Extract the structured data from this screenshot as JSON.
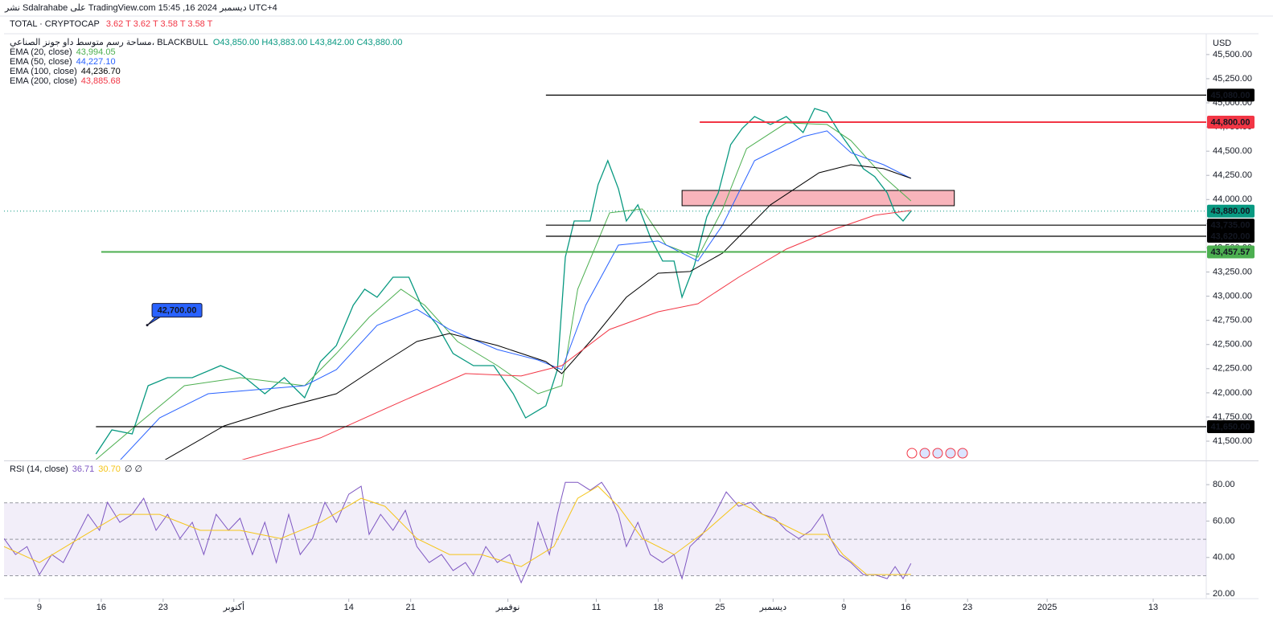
{
  "header": {
    "published": "نشر Sdalrahabe على TradingView.com 15:45 ,16 ديسمبر 2024 UTC+4",
    "symbol": "TOTAL · CRYPTOCAP",
    "symbol_values": "3.62 T  3.62 T  3.58 T  3.58 T",
    "overlay": "مساحة رسم متوسط داو جونز الصناعي، BLACKBULL",
    "ohlc": "O43,850.00  H43,883.00  L43,842.00  C43,880.00",
    "currency": "USD"
  },
  "chart_data": [
    {
      "type": "line",
      "xlim": [
        -4,
        132
      ],
      "ylim": [
        41309,
        45690
      ],
      "yticks": [
        {
          "value": 41500,
          "label": "41,500.00"
        },
        {
          "value": 41750,
          "label": "41,750.00"
        },
        {
          "value": 42000,
          "label": "42,000.00"
        },
        {
          "value": 42250,
          "label": "42,250.00"
        },
        {
          "value": 42500,
          "label": "42,500.00"
        },
        {
          "value": 42750,
          "label": "42,750.00"
        },
        {
          "value": 43000,
          "label": "43,000.00"
        },
        {
          "value": 43250,
          "label": "43,250.00"
        },
        {
          "value": 43500,
          "label": "43,500.00"
        },
        {
          "value": 43750,
          "label": "43,750.00"
        },
        {
          "value": 44000,
          "label": "44,000.00"
        },
        {
          "value": 44250,
          "label": "44,250.00"
        },
        {
          "value": 44500,
          "label": "44,500.00"
        },
        {
          "value": 44750,
          "label": "44,750.00"
        },
        {
          "value": 45000,
          "label": "45,000.00"
        },
        {
          "value": 45250,
          "label": "45,250.00"
        },
        {
          "value": 45500,
          "label": "45,500.00"
        }
      ],
      "series": [
        {
          "color": "#089981",
          "last_value_label": "43,880.00",
          "x": [
            6.4,
            8.2,
            10.5,
            12.3,
            14.5,
            17.3,
            20.5,
            22.7,
            25.5,
            27.7,
            30,
            31.8,
            33.6,
            35.5,
            36.8,
            38.2,
            40,
            41.8,
            43.2,
            45,
            46.8,
            49.1,
            51.4,
            53.6,
            55,
            57.3,
            58.6,
            59.5,
            60.5,
            62.3,
            63.2,
            64.3,
            65.5,
            66.4,
            67.7,
            69.1,
            70.5,
            71.8,
            72.7,
            74.1,
            75.5,
            76.8,
            78.2,
            79.5,
            80.9,
            82.7,
            84.5,
            86.4,
            87.7,
            89.1,
            90.5,
            91.8,
            93.2,
            94.5,
            95.9,
            96.8,
            97.7,
            98.6
          ],
          "values": [
            41367,
            41617,
            41575,
            42074,
            42157,
            42157,
            42282,
            42199,
            41991,
            42157,
            41949,
            42323,
            42490,
            42905,
            43072,
            42989,
            43196,
            43196,
            42905,
            42698,
            42407,
            42282,
            42282,
            41991,
            41741,
            41866,
            42240,
            43404,
            43778,
            43778,
            44153,
            44402,
            44111,
            43778,
            43945,
            43612,
            43363,
            43363,
            42989,
            43321,
            43820,
            44069,
            44568,
            44735,
            44859,
            44776,
            44859,
            44693,
            44942,
            44901,
            44693,
            44527,
            44319,
            44236,
            44069,
            43862,
            43778,
            43880
          ]
        },
        {
          "name": "EMA (20, close)",
          "legend_value": "43,994.05",
          "color": "#4caf50",
          "x": [
            6.4,
            10.9,
            16.4,
            22.7,
            30,
            33.6,
            37.3,
            40.9,
            43.6,
            47.3,
            51.8,
            56.4,
            59.1,
            60.9,
            64.5,
            68.2,
            70.9,
            74.5,
            77.3,
            80,
            84.5,
            89.1,
            91.8,
            95.5,
            98.6
          ],
          "values": [
            41309,
            41658,
            42074,
            42157,
            42074,
            42407,
            42781,
            43072,
            42905,
            42531,
            42282,
            41991,
            42074,
            43072,
            43862,
            43903,
            43529,
            43404,
            43903,
            44527,
            44793,
            44776,
            44610,
            44236,
            43986
          ]
        },
        {
          "name": "EMA (50, close)",
          "legend_value": "44,227.10",
          "color": "#2962ff",
          "x": [
            9.1,
            13.6,
            19.1,
            24.5,
            30,
            33.6,
            38.2,
            42.7,
            46.4,
            51.8,
            56.4,
            59.1,
            61.8,
            65.5,
            70,
            74.5,
            77.3,
            80.9,
            86.4,
            89.1,
            91.8,
            95.5,
            98.6
          ],
          "values": [
            41301,
            41741,
            41991,
            42032,
            42074,
            42240,
            42698,
            42864,
            42656,
            42448,
            42340,
            42240,
            42905,
            43529,
            43571,
            43363,
            43737,
            44402,
            44651,
            44710,
            44485,
            44360,
            44219
          ]
        },
        {
          "name": "EMA (100, close)",
          "legend_value": "44,236.70",
          "color": "#000000",
          "x": [
            14.1,
            20.9,
            27.3,
            33.6,
            39.1,
            42.7,
            46.4,
            51.8,
            57.3,
            59.1,
            62.7,
            66.4,
            70,
            73.6,
            77.3,
            82.7,
            88.2,
            91.8,
            95.5,
            98.6
          ],
          "values": [
            41301,
            41658,
            41841,
            41991,
            42323,
            42531,
            42614,
            42490,
            42323,
            42199,
            42573,
            42989,
            43238,
            43255,
            43446,
            43945,
            44277,
            44360,
            44319,
            44219
          ]
        },
        {
          "name": "EMA (200, close)",
          "legend_value": "43,885.68",
          "color": "#f23645",
          "x": [
            22.7,
            31.8,
            40.9,
            48.2,
            54.5,
            59.1,
            64.5,
            70,
            74.5,
            79.1,
            84.5,
            90,
            94.5,
            98.6
          ],
          "values": [
            41301,
            41534,
            41908,
            42199,
            42174,
            42282,
            42656,
            42839,
            42922,
            43196,
            43487,
            43695,
            43837,
            43887
          ]
        }
      ],
      "levels": [
        {
          "value": 45080,
          "label": "45,080.00",
          "color": "#000000",
          "x_start": 57.3
        },
        {
          "value": 44800,
          "label": "44,800.00",
          "color": "#f23645",
          "x_start": 74.7
        },
        {
          "value": 43735,
          "label": "43,735.00",
          "color": "#000000",
          "x_start": 57.3
        },
        {
          "value": 43620,
          "label": "43,620.00",
          "color": "#000000",
          "x_start": 57.3
        },
        {
          "value": 43457.57,
          "label": "43,457.57",
          "color": "#4caf50",
          "x_start": 7
        },
        {
          "value": 41650,
          "label": "41,650.00",
          "color": "#000000",
          "x_start": 6.4
        }
      ],
      "zone": {
        "x": [
          72.7,
          103.5
        ],
        "y": [
          43936,
          44094
        ],
        "color": "#f8b4bb"
      },
      "annotation": {
        "label": "42,700.00",
        "x": 12.2,
        "y": 42700,
        "color": "#2962ff"
      }
    },
    {
      "type": "line",
      "xlim": [
        -4,
        132
      ],
      "ylim": [
        17.4,
        92.4
      ],
      "yticks": [
        {
          "value": 20,
          "label": "20.00"
        },
        {
          "value": 40,
          "label": "40.00"
        },
        {
          "value": 60,
          "label": "60.00"
        },
        {
          "value": 80,
          "label": "80.00"
        }
      ],
      "band": [
        30,
        70
      ],
      "hlines": [
        70,
        50,
        30
      ],
      "xticks": [
        {
          "value": 0,
          "label": "9"
        },
        {
          "value": 7,
          "label": "16"
        },
        {
          "value": 14,
          "label": "23"
        },
        {
          "value": 22,
          "label": "أكتوبر"
        },
        {
          "value": 35,
          "label": "14"
        },
        {
          "value": 42,
          "label": "21"
        },
        {
          "value": 53,
          "label": "نوفمبر"
        },
        {
          "value": 63,
          "label": "11"
        },
        {
          "value": 70,
          "label": "18"
        },
        {
          "value": 77,
          "label": "25"
        },
        {
          "value": 83,
          "label": "ديسمبر"
        },
        {
          "value": 91,
          "label": "9"
        },
        {
          "value": 98,
          "label": "16"
        },
        {
          "value": 105,
          "label": "23"
        },
        {
          "value": 114,
          "label": "2025"
        },
        {
          "value": 126,
          "label": "13"
        }
      ],
      "series": [
        {
          "name": "RSI (14, close)",
          "legend_value": "36.71",
          "color": "#7e57c2",
          "x": [
            -4,
            -2.7,
            -1.4,
            0,
            1.4,
            2.7,
            4.1,
            5.5,
            6.8,
            7.7,
            9.1,
            10.5,
            11.8,
            13.2,
            14.5,
            15.9,
            17.3,
            18.6,
            20,
            21.4,
            22.7,
            24.1,
            25.5,
            26.8,
            28.2,
            29.5,
            30.9,
            32.3,
            33.6,
            35,
            36.4,
            37.3,
            38.6,
            40,
            41.4,
            42.7,
            44.1,
            45.5,
            46.8,
            48.2,
            49.1,
            50.5,
            51.8,
            53.2,
            54.5,
            55.5,
            56.4,
            57.7,
            58.6,
            59.5,
            60.9,
            62.3,
            63.6,
            64.5,
            65.5,
            66.4,
            67.7,
            69.1,
            70.5,
            71.8,
            72.7,
            73.6,
            75,
            76.4,
            77.7,
            79.1,
            80.5,
            81.8,
            83.2,
            84.5,
            85.9,
            87.3,
            88.6,
            89.5,
            90.5,
            91.8,
            93.2,
            94.5,
            95.9,
            96.8,
            97.7,
            98.6
          ],
          "values": [
            50.4,
            41.6,
            46,
            30.6,
            41.6,
            37.2,
            50.4,
            63.7,
            54.9,
            70.3,
            59.3,
            63.7,
            72.5,
            54.9,
            63.7,
            50.4,
            59.3,
            41.6,
            63.7,
            54.9,
            61.5,
            41.6,
            59.3,
            37.2,
            63.7,
            41.6,
            50.4,
            70.3,
            59.3,
            74.7,
            79.1,
            52.7,
            63.7,
            54.9,
            65.9,
            46,
            37.2,
            41.6,
            32.8,
            37.2,
            30.6,
            46,
            37.2,
            41.6,
            26.2,
            37.2,
            59.3,
            41.6,
            63.7,
            81.3,
            81.3,
            76.9,
            81.3,
            74.7,
            63.7,
            46,
            59.3,
            41.6,
            37.2,
            41.6,
            28.4,
            46,
            52.7,
            63.7,
            76,
            68.1,
            70.3,
            63.7,
            61.5,
            54.9,
            50.4,
            54.9,
            63.7,
            50.4,
            41.6,
            37.2,
            30.6,
            30.6,
            28.4,
            35,
            28.4,
            36.71
          ]
        },
        {
          "legend_value": "30.70",
          "color": "#f5c518",
          "x": [
            -4,
            0,
            4.5,
            9.1,
            13.6,
            18.2,
            22.7,
            27.3,
            31.8,
            36.4,
            39.1,
            42.7,
            46.4,
            50,
            54.5,
            58.2,
            60.9,
            63.2,
            65.5,
            68.2,
            71.8,
            75.5,
            79.1,
            82.7,
            86.4,
            89.1,
            90.9,
            93.6,
            96.4,
            98.6
          ],
          "values": [
            46,
            37.2,
            50.4,
            63.7,
            63.7,
            54.9,
            54.9,
            50.4,
            59.3,
            72.5,
            68.1,
            50.4,
            41.6,
            41.6,
            35,
            46,
            72.5,
            79.1,
            68.1,
            50.4,
            41.6,
            54.9,
            70.3,
            61.5,
            52.7,
            52.7,
            41.6,
            30.6,
            30.6,
            30.7
          ]
        }
      ],
      "extra": "∅  ∅"
    }
  ]
}
